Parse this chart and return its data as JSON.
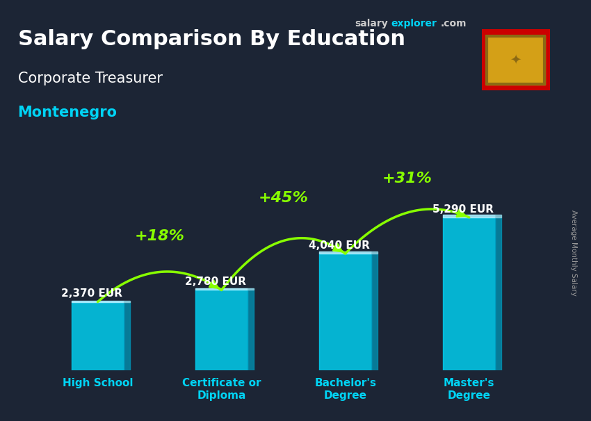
{
  "title_main": "Salary Comparison By Education",
  "subtitle1": "Corporate Treasurer",
  "subtitle2": "Montenegro",
  "ylabel_rotated": "Average Monthly Salary",
  "categories": [
    "High School",
    "Certificate or\nDiploma",
    "Bachelor's\nDegree",
    "Master's\nDegree"
  ],
  "values": [
    2370,
    2780,
    4040,
    5290
  ],
  "value_labels": [
    "2,370 EUR",
    "2,780 EUR",
    "4,040 EUR",
    "5,290 EUR"
  ],
  "pct_labels": [
    "+18%",
    "+45%",
    "+31%"
  ],
  "bar_color": "#00d4f5",
  "bar_color_dark": "#0099bb",
  "bar_alpha": 0.82,
  "title_color": "#ffffff",
  "subtitle1_color": "#ffffff",
  "subtitle2_color": "#00d4f5",
  "value_label_color": "#ffffff",
  "pct_color": "#88ff00",
  "arrow_color": "#88ff00",
  "x_label_color": "#00d4f5",
  "ylabel_color": "#999999",
  "bg_color": "#2a3545",
  "salaryexplorer_color1": "#cccccc",
  "salaryexplorer_color2": "#00d4f5",
  "figsize": [
    8.5,
    6.06
  ],
  "dpi": 100,
  "ylim_max_factor": 1.65,
  "title_fontsize": 22,
  "subtitle1_fontsize": 15,
  "subtitle2_fontsize": 15,
  "value_label_fontsize": 11,
  "pct_fontsize": 16,
  "xlabel_fontsize": 11
}
